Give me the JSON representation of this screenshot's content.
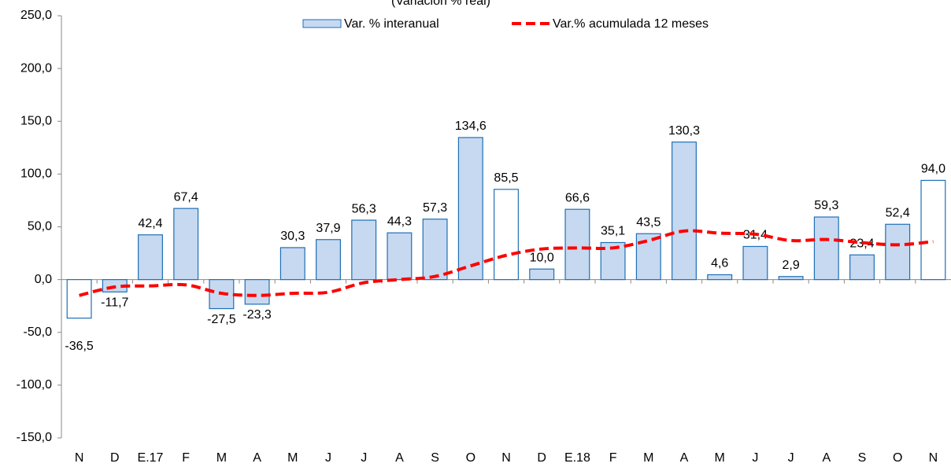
{
  "chart_data": {
    "type": "bar_line",
    "title": "(Variación % real)",
    "categories": [
      "N",
      "D",
      "E.17",
      "F",
      "M",
      "A",
      "M",
      "J",
      "J",
      "A",
      "S",
      "O",
      "N",
      "D",
      "E.18",
      "F",
      "M",
      "A",
      "M",
      "J",
      "J",
      "A",
      "S",
      "O",
      "N"
    ],
    "series": [
      {
        "name": "Var. % interanual",
        "type": "bar",
        "color": "#c6d9f1",
        "edge_color": "#1f6fb5",
        "colors": [
          "#ffffff",
          "#c6d9f1",
          "#c6d9f1",
          "#c6d9f1",
          "#c6d9f1",
          "#c6d9f1",
          "#c6d9f1",
          "#c6d9f1",
          "#c6d9f1",
          "#c6d9f1",
          "#c6d9f1",
          "#c6d9f1",
          "#ffffff",
          "#c6d9f1",
          "#c6d9f1",
          "#c6d9f1",
          "#c6d9f1",
          "#c6d9f1",
          "#c6d9f1",
          "#c6d9f1",
          "#c6d9f1",
          "#c6d9f1",
          "#c6d9f1",
          "#c6d9f1",
          "#ffffff"
        ],
        "values": [
          -36.5,
          -11.7,
          42.4,
          67.4,
          -27.5,
          -23.3,
          30.3,
          37.9,
          56.3,
          44.3,
          57.3,
          134.6,
          85.5,
          10.0,
          66.6,
          35.1,
          43.5,
          130.3,
          4.6,
          31.4,
          2.9,
          59.3,
          23.4,
          52.4,
          94.0
        ],
        "value_labels": [
          "-36,5",
          "-11,7",
          "42,4",
          "67,4",
          "-27,5",
          "-23,3",
          "30,3",
          "37,9",
          "56,3",
          "44,3",
          "57,3",
          "134,6",
          "85,5",
          "10,0",
          "66,6",
          "35,1",
          "43,5",
          "130,3",
          "4,6",
          "31,4",
          "2,9",
          "59,3",
          "23,4",
          "52,4",
          "94,0"
        ]
      },
      {
        "name": "Var.% acumulada 12 meses",
        "type": "line",
        "color": "#ff0000",
        "dashed": true,
        "values": [
          -15,
          -7,
          -6,
          -5,
          -13,
          -15,
          -13,
          -12,
          -3,
          0,
          3,
          13,
          23,
          29,
          30,
          30,
          37,
          46,
          44,
          43,
          37,
          38,
          35,
          33,
          36
        ]
      }
    ],
    "ylim": [
      -150,
      250
    ],
    "yticks": [
      {
        "value": -150,
        "label": "-150,0"
      },
      {
        "value": -100,
        "label": "-100,0"
      },
      {
        "value": -50,
        "label": "-50,0"
      },
      {
        "value": 0,
        "label": "0,0"
      },
      {
        "value": 50,
        "label": "50,0"
      },
      {
        "value": 100,
        "label": "100,0"
      },
      {
        "value": 150,
        "label": "150,0"
      },
      {
        "value": 200,
        "label": "200,0"
      },
      {
        "value": 250,
        "label": "250,0"
      }
    ],
    "legend": "top"
  }
}
